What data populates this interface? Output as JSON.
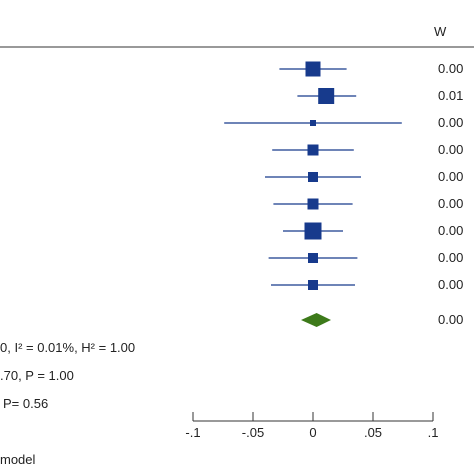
{
  "header": {
    "weight_label": "W"
  },
  "studies": [
    {
      "es": 0.0,
      "ci": [
        -0.028,
        0.028
      ],
      "weight": "0.00",
      "size": 15
    },
    {
      "es": 0.011,
      "ci": [
        -0.013,
        0.036
      ],
      "weight": "0.01",
      "size": 16
    },
    {
      "es": 0.0,
      "ci": [
        -0.074,
        0.074
      ],
      "weight": "0.00",
      "size": 6
    },
    {
      "es": 0.0,
      "ci": [
        -0.034,
        0.034
      ],
      "weight": "0.00",
      "size": 11
    },
    {
      "es": 0.0,
      "ci": [
        -0.04,
        0.04
      ],
      "weight": "0.00",
      "size": 10
    },
    {
      "es": 0.0,
      "ci": [
        -0.033,
        0.033
      ],
      "weight": "0.00",
      "size": 11
    },
    {
      "es": 0.0,
      "ci": [
        -0.025,
        0.025
      ],
      "weight": "0.00",
      "size": 17
    },
    {
      "es": 0.0,
      "ci": [
        -0.037,
        0.037
      ],
      "weight": "0.00",
      "size": 10
    },
    {
      "es": 0.0,
      "ci": [
        -0.035,
        0.035
      ],
      "weight": "0.00",
      "size": 10
    }
  ],
  "overall": {
    "es": 0.003,
    "ci": [
      -0.01,
      0.015
    ],
    "weight": "0.00"
  },
  "stats": {
    "heterogeneity": "0, I² = 0.01%, H² = 1.00",
    "homogeneity": ".70, P = 1.00",
    "overall_test": "P= 0.56"
  },
  "footer": {
    "text": "model"
  },
  "chart_data": {
    "type": "forest",
    "xlim": [
      -0.1,
      0.1
    ],
    "xticks": [
      -0.1,
      -0.05,
      0,
      0.05,
      0.1
    ],
    "xtick_labels": [
      "-.1",
      "-.05",
      "0",
      ".05",
      ".1"
    ],
    "colors": {
      "box": "#173a8c",
      "ci": "#173a8c",
      "diamond": "#3d7a1a",
      "axis": "#333333"
    }
  }
}
